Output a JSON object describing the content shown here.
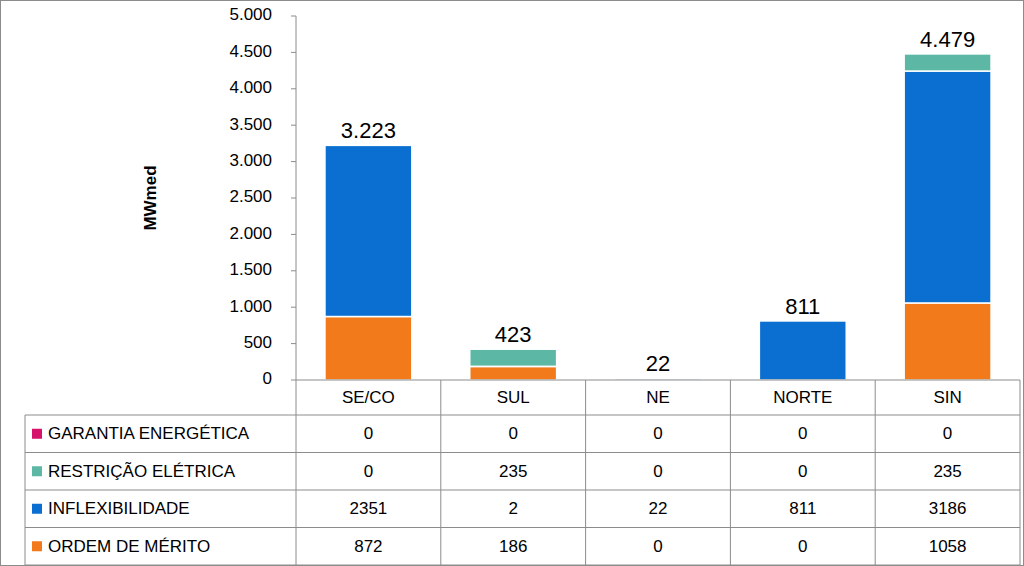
{
  "chart_data": {
    "type": "bar",
    "stacked": true,
    "grid": false,
    "y_label": "MWmed",
    "categories": [
      "SE/CO",
      "SUL",
      "NE",
      "NORTE",
      "SIN"
    ],
    "series": [
      {
        "name": "ORDEM DE MÉRITO",
        "color": "#f27a1a",
        "values": [
          872,
          186,
          0,
          0,
          1058
        ]
      },
      {
        "name": "INFLEXIBILIDADE",
        "color": "#0a6fd0",
        "values": [
          2351,
          2,
          22,
          811,
          3186
        ]
      },
      {
        "name": "RESTRIÇÃO ELÉTRICA",
        "color": "#5cb8a4",
        "values": [
          0,
          235,
          0,
          0,
          235
        ]
      },
      {
        "name": "GARANTIA ENERGÉTICA",
        "color": "#d6136b",
        "values": [
          0,
          0,
          0,
          0,
          0
        ]
      }
    ],
    "totals": [
      3223,
      423,
      22,
      811,
      4479
    ],
    "total_labels": [
      "3.223",
      "423",
      "22",
      "811",
      "4.479"
    ],
    "ylim": [
      0,
      5000
    ],
    "yticks": [
      0,
      500,
      {
        "value": 1000,
        "label": "1.000"
      },
      {
        "value": 1500,
        "label": "1.500"
      },
      {
        "value": 2000,
        "label": "2.000"
      },
      {
        "value": 2500,
        "label": "2.500"
      },
      {
        "value": 3000,
        "label": "3.000"
      },
      {
        "value": 3500,
        "label": "3.500"
      },
      {
        "value": 4000,
        "label": "4.000"
      },
      {
        "value": 4500,
        "label": "4.500"
      },
      {
        "value": 5000,
        "label": "5.000"
      }
    ]
  }
}
